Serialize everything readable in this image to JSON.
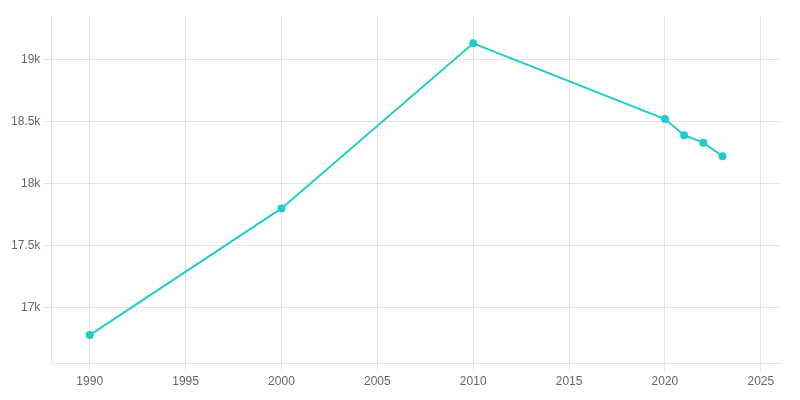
{
  "chart_data": {
    "type": "line",
    "x": [
      1990,
      2000,
      2010,
      2020,
      2021,
      2022,
      2023
    ],
    "values": [
      16780,
      17800,
      19130,
      18520,
      18390,
      18330,
      18220
    ],
    "color": "#22CCCC",
    "marker": "circle",
    "xlim": [
      1988,
      2026
    ],
    "ylim": [
      16550,
      19350
    ],
    "xticks": [
      1990,
      1995,
      2000,
      2005,
      2010,
      2015,
      2020,
      2025
    ],
    "yticks": [
      {
        "value": 17000,
        "label": "17k"
      },
      {
        "value": 17500,
        "label": "17.5k"
      },
      {
        "value": 18000,
        "label": "18k"
      },
      {
        "value": 18500,
        "label": "18.5k"
      },
      {
        "value": 19000,
        "label": "19k"
      }
    ],
    "grid": true
  }
}
